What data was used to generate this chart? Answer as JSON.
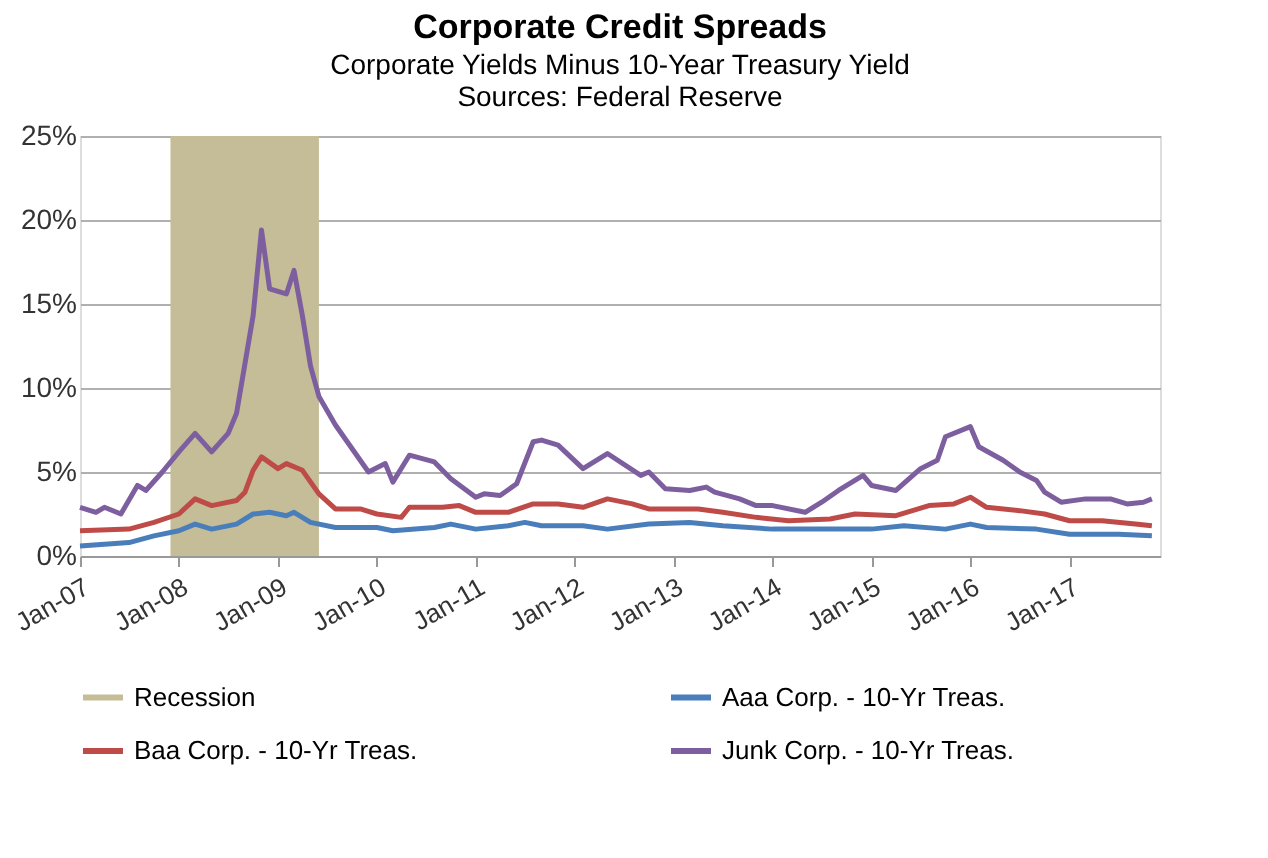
{
  "chart_data": {
    "type": "line",
    "title": "Corporate Credit Spreads",
    "subtitle": "Corporate Yields Minus 10-Year Treasury Yield",
    "annotations": [
      "Sources:  Federal Reserve"
    ],
    "xlim": [
      "2007-01",
      "2017-12"
    ],
    "xticks": [
      {
        "value": "2007-01",
        "label": "Jan-07"
      },
      {
        "value": "2008-01",
        "label": "Jan-08"
      },
      {
        "value": "2009-01",
        "label": "Jan-09"
      },
      {
        "value": "2010-01",
        "label": "Jan-10"
      },
      {
        "value": "2011-01",
        "label": "Jan-11"
      },
      {
        "value": "2012-01",
        "label": "Jan-12"
      },
      {
        "value": "2013-01",
        "label": "Jan-13"
      },
      {
        "value": "2014-01",
        "label": "Jan-14"
      },
      {
        "value": "2015-01",
        "label": "Jan-15"
      },
      {
        "value": "2016-01",
        "label": "Jan-16"
      },
      {
        "value": "2017-01",
        "label": "Jan-17"
      }
    ],
    "ylim": [
      0,
      25
    ],
    "yticks": [
      {
        "value": 0,
        "label": "0%"
      },
      {
        "value": 5,
        "label": "5%"
      },
      {
        "value": 10,
        "label": "10%"
      },
      {
        "value": 15,
        "label": "15%"
      },
      {
        "value": 20,
        "label": "20%"
      },
      {
        "value": 25,
        "label": "25%"
      }
    ],
    "grid": "y",
    "legend": "bottom",
    "bands": [
      {
        "axis": "x",
        "from": "2007-12",
        "to": "2009-06",
        "label": "Recession",
        "color": "#c4bd97"
      }
    ],
    "series": [
      {
        "name": "Aaa Corp. - 10-Yr Treas.",
        "color": "#4a7ebb",
        "x": [
          "2007-01",
          "2007-07",
          "2007-10",
          "2008-01",
          "2008-03",
          "2008-05",
          "2008-08",
          "2008-10",
          "2008-12",
          "2009-02",
          "2009-03",
          "2009-05",
          "2009-08",
          "2010-01",
          "2010-03",
          "2010-08",
          "2010-10",
          "2011-01",
          "2011-05",
          "2011-07",
          "2011-09",
          "2012-02",
          "2012-05",
          "2012-10",
          "2013-03",
          "2013-07",
          "2014-01",
          "2014-07",
          "2015-01",
          "2015-05",
          "2015-10",
          "2016-01",
          "2016-03",
          "2016-09",
          "2017-01",
          "2017-07",
          "2017-11"
        ],
        "values": [
          0.6,
          0.8,
          1.2,
          1.5,
          1.9,
          1.6,
          1.9,
          2.5,
          2.6,
          2.4,
          2.6,
          2.0,
          1.7,
          1.7,
          1.5,
          1.7,
          1.9,
          1.6,
          1.8,
          2.0,
          1.8,
          1.8,
          1.6,
          1.9,
          2.0,
          1.8,
          1.6,
          1.6,
          1.6,
          1.8,
          1.6,
          1.9,
          1.7,
          1.6,
          1.3,
          1.3,
          1.2
        ]
      },
      {
        "name": "Baa Corp. - 10-Yr Treas.",
        "color": "#be4b48",
        "x": [
          "2007-01",
          "2007-07",
          "2007-10",
          "2008-01",
          "2008-03",
          "2008-05",
          "2008-08",
          "2008-09",
          "2008-10",
          "2008-11",
          "2009-01",
          "2009-02",
          "2009-04",
          "2009-06",
          "2009-08",
          "2009-11",
          "2010-01",
          "2010-04",
          "2010-05",
          "2010-09",
          "2010-11",
          "2011-01",
          "2011-05",
          "2011-08",
          "2011-11",
          "2012-02",
          "2012-05",
          "2012-08",
          "2012-10",
          "2013-01",
          "2013-04",
          "2013-07",
          "2013-11",
          "2014-03",
          "2014-08",
          "2014-11",
          "2015-04",
          "2015-08",
          "2015-11",
          "2016-01",
          "2016-03",
          "2016-07",
          "2016-10",
          "2017-01",
          "2017-05",
          "2017-09",
          "2017-11"
        ],
        "values": [
          1.5,
          1.6,
          2.0,
          2.5,
          3.4,
          3.0,
          3.3,
          3.8,
          5.1,
          5.9,
          5.2,
          5.5,
          5.1,
          3.7,
          2.8,
          2.8,
          2.5,
          2.3,
          2.9,
          2.9,
          3.0,
          2.6,
          2.6,
          3.1,
          3.1,
          2.9,
          3.4,
          3.1,
          2.8,
          2.8,
          2.8,
          2.6,
          2.3,
          2.1,
          2.2,
          2.5,
          2.4,
          3.0,
          3.1,
          3.5,
          2.9,
          2.7,
          2.5,
          2.1,
          2.1,
          1.9,
          1.8
        ]
      },
      {
        "name": "Junk Corp. - 10-Yr Treas.",
        "color": "#7d5fa0",
        "x": [
          "2007-01",
          "2007-03",
          "2007-04",
          "2007-06",
          "2007-08",
          "2007-09",
          "2007-11",
          "2008-01",
          "2008-03",
          "2008-05",
          "2008-07",
          "2008-08",
          "2008-10",
          "2008-11",
          "2008-12",
          "2009-02",
          "2009-03",
          "2009-04",
          "2009-05",
          "2009-06",
          "2009-08",
          "2009-10",
          "2009-12",
          "2010-02",
          "2010-03",
          "2010-05",
          "2010-08",
          "2010-10",
          "2011-01",
          "2011-02",
          "2011-04",
          "2011-06",
          "2011-08",
          "2011-09",
          "2011-11",
          "2012-02",
          "2012-05",
          "2012-09",
          "2012-10",
          "2012-12",
          "2013-03",
          "2013-05",
          "2013-06",
          "2013-09",
          "2013-11",
          "2014-01",
          "2014-05",
          "2014-07",
          "2014-09",
          "2014-12",
          "2015-01",
          "2015-04",
          "2015-07",
          "2015-09",
          "2015-10",
          "2016-01",
          "2016-02",
          "2016-05",
          "2016-07",
          "2016-09",
          "2016-10",
          "2016-12",
          "2017-03",
          "2017-06",
          "2017-08",
          "2017-10",
          "2017-11"
        ],
        "values": [
          2.9,
          2.6,
          2.9,
          2.5,
          4.2,
          3.9,
          5.0,
          6.2,
          7.3,
          6.2,
          7.3,
          8.5,
          14.3,
          19.4,
          15.9,
          15.6,
          17.0,
          14.3,
          11.3,
          9.5,
          7.8,
          6.4,
          5.0,
          5.5,
          4.4,
          6.0,
          5.6,
          4.6,
          3.5,
          3.7,
          3.6,
          4.3,
          6.8,
          6.9,
          6.6,
          5.2,
          6.1,
          4.8,
          5.0,
          4.0,
          3.9,
          4.1,
          3.8,
          3.4,
          3.0,
          3.0,
          2.6,
          3.2,
          3.9,
          4.8,
          4.2,
          3.9,
          5.2,
          5.7,
          7.1,
          7.7,
          6.5,
          5.7,
          5.0,
          4.5,
          3.8,
          3.2,
          3.4,
          3.4,
          3.1,
          3.2,
          3.4
        ]
      }
    ]
  }
}
